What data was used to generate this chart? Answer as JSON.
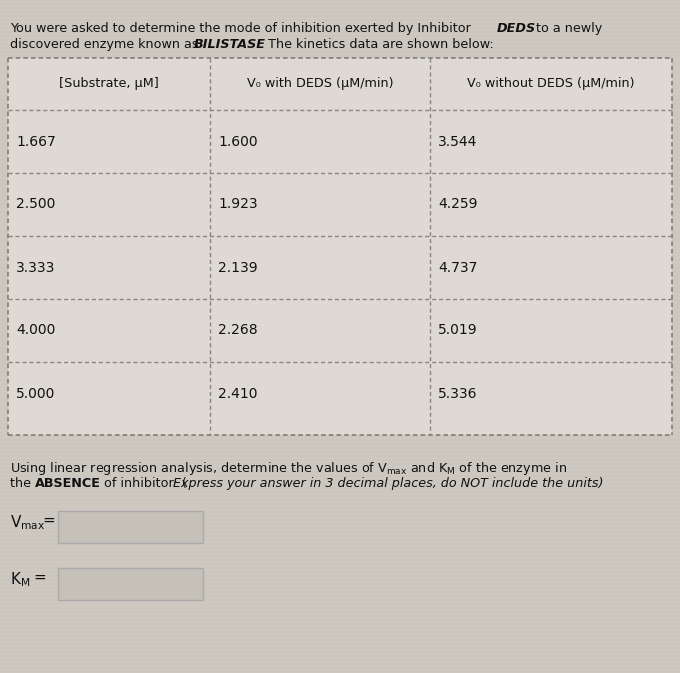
{
  "col_headers": [
    "[Substrate, μM]",
    "V₀ with DEDS (μM/min)",
    "V₀ without DEDS (μM/min)"
  ],
  "rows": [
    [
      "1.667",
      "1.600",
      "3.544"
    ],
    [
      "2.500",
      "1.923",
      "4.259"
    ],
    [
      "3.333",
      "2.139",
      "4.737"
    ],
    [
      "4.000",
      "2.268",
      "5.019"
    ],
    [
      "5.000",
      "2.410",
      "5.336"
    ]
  ],
  "bg_color": "#cdc9c0",
  "table_bg": "#dedad3",
  "text_color": "#111111",
  "input_box_color": "#c5c1b8",
  "dash_color": "#888880",
  "font_size": 9.2,
  "header_font_size": 9.2,
  "data_font_size": 10.0
}
